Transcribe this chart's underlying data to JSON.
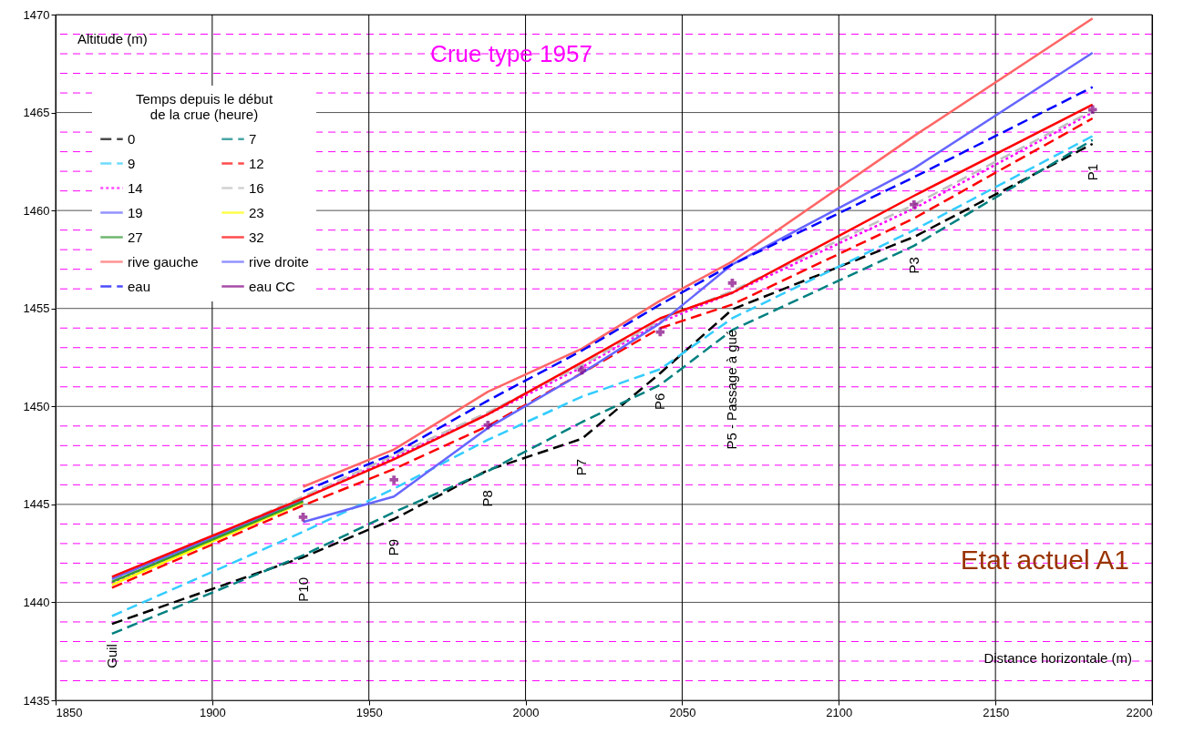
{
  "chart_data": {
    "type": "line",
    "title": "Crue type 1957",
    "xlabel": "Distance horizontale (m)",
    "ylabel": "Altitude (m)",
    "legend_title": "Temps depuis le début de la crue (heure)",
    "x": [
      1868,
      1929,
      1958,
      1988,
      2018,
      2043,
      2066,
      2124,
      2181
    ],
    "series": [
      {
        "name": "0",
        "color": "#000000",
        "line_style": "dashed",
        "values": [
          1438.9,
          1442.3,
          1444.25,
          1446.75,
          1448.35,
          1451.7,
          1454.95,
          1458.65,
          1463.4
        ]
      },
      {
        "name": "7",
        "color": "#008080",
        "line_style": "dashed",
        "values": [
          1438.4,
          1442.4,
          1444.6,
          1446.7,
          1449.2,
          1451.1,
          1453.9,
          1458.2,
          1463.6
        ]
      },
      {
        "name": "9",
        "color": "#33ccff",
        "line_style": "dashed",
        "values": [
          1439.3,
          1443.6,
          1445.8,
          1448.3,
          1450.5,
          1451.9,
          1454.5,
          1459.0,
          1463.8
        ]
      },
      {
        "name": "12",
        "color": "#ff0000",
        "line_style": "dashed",
        "values": [
          1440.75,
          1444.95,
          1446.8,
          1449.0,
          1451.7,
          1454.0,
          1455.2,
          1459.6,
          1464.7
        ]
      },
      {
        "name": "14",
        "color": "#ff00ff",
        "line_style": "dotted",
        "values": [
          1441.0,
          1445.3,
          1447.4,
          1449.6,
          1452.0,
          1454.3,
          1455.8,
          1460.1,
          1465.0
        ]
      },
      {
        "name": "16",
        "color": "#c0c0c0",
        "line_style": "dashed",
        "values": [
          1441.1,
          1445.4,
          1447.5,
          1449.7,
          1452.1,
          1454.4,
          1455.9,
          1460.3,
          1465.1
        ]
      },
      {
        "name": "19",
        "color": "#6666ff",
        "line_style": "solid",
        "values": [
          1441.2,
          1445.2,
          null,
          null,
          null,
          null,
          null,
          null,
          null
        ]
      },
      {
        "name": "23",
        "color": "#ffff00",
        "line_style": "solid",
        "values": [
          1440.9,
          1445.1,
          null,
          null,
          null,
          null,
          null,
          null,
          null
        ]
      },
      {
        "name": "27",
        "color": "#339933",
        "line_style": "solid",
        "values": [
          1441.05,
          1445.15,
          null,
          null,
          null,
          null,
          null,
          null,
          null
        ]
      },
      {
        "name": "32",
        "color": "#ff0000",
        "line_style": "solid",
        "values": [
          1441.3,
          1445.3,
          1447.3,
          1449.6,
          1452.25,
          1454.5,
          1455.8,
          1460.75,
          1465.4
        ]
      },
      {
        "name": "rive gauche",
        "color": "#ff6666",
        "line_style": "solid",
        "x": [
          1929,
          1958,
          1988,
          2018,
          2043,
          2066,
          2124,
          2181
        ],
        "values": [
          1445.9,
          1447.8,
          1450.75,
          1452.95,
          1455.4,
          1457.4,
          1463.8,
          1469.8
        ]
      },
      {
        "name": "rive droite",
        "color": "#6666ff",
        "line_style": "solid",
        "x": [
          1929,
          1958,
          1988,
          2018,
          2043,
          2066,
          2124,
          2181
        ],
        "values": [
          1444.1,
          1445.4,
          1448.9,
          1451.7,
          1454.25,
          1457.25,
          1462.15,
          1468.05
        ]
      },
      {
        "name": "eau",
        "color": "#0000ff",
        "line_style": "dashed",
        "x": [
          1929,
          1958,
          1988,
          2018,
          2043,
          2066,
          2124,
          2181
        ],
        "values": [
          1445.65,
          1447.6,
          1450.3,
          1452.85,
          1455.2,
          1457.25,
          1461.7,
          1466.3
        ]
      },
      {
        "name": "eau CC",
        "type": "scatter",
        "marker": "cross",
        "color": "#800080",
        "x": [
          1929,
          1958,
          1988,
          2018,
          2043,
          2066,
          2124,
          2181
        ],
        "values": [
          1444.35,
          1446.25,
          1449.05,
          1451.85,
          1453.8,
          1456.3,
          1460.3,
          1465.15
        ]
      }
    ],
    "xlim": [
      1850,
      2200
    ],
    "xticks": [
      1850,
      1900,
      1950,
      2000,
      2050,
      2100,
      2150,
      2200
    ],
    "ylim": [
      1435,
      1470
    ],
    "yticks": [
      1435,
      {
        "value": 1436,
        "label": null
      },
      {
        "value": 1437,
        "label": null
      },
      {
        "value": 1438,
        "label": null
      },
      {
        "value": 1439,
        "label": null
      },
      1440,
      {
        "value": 1441,
        "label": null
      },
      {
        "value": 1442,
        "label": null
      },
      {
        "value": 1443,
        "label": null
      },
      {
        "value": 1444,
        "label": null
      },
      1445,
      {
        "value": 1446,
        "label": null
      },
      {
        "value": 1447,
        "label": null
      },
      {
        "value": 1448,
        "label": null
      },
      {
        "value": 1449,
        "label": null
      },
      1450,
      {
        "value": 1451,
        "label": null
      },
      {
        "value": 1452,
        "label": null
      },
      {
        "value": 1453,
        "label": null
      },
      {
        "value": 1454,
        "label": null
      },
      1455,
      {
        "value": 1456,
        "label": null
      },
      {
        "value": 1457,
        "label": null
      },
      {
        "value": 1458,
        "label": null
      },
      {
        "value": 1459,
        "label": null
      },
      1460,
      {
        "value": 1461,
        "label": null
      },
      {
        "value": 1462,
        "label": null
      },
      {
        "value": 1463,
        "label": null
      },
      {
        "value": 1464,
        "label": null
      },
      1465,
      {
        "value": 1466,
        "label": null
      },
      {
        "value": 1467,
        "label": null
      },
      {
        "value": 1468,
        "label": null
      },
      {
        "value": 1469,
        "label": null
      },
      1470
    ],
    "grid": true,
    "legend": "top left",
    "annotations": [
      {
        "text": "P10",
        "x": 1929,
        "y": 1442.3
      },
      {
        "text": "P9",
        "x": 1958,
        "y": 1444.25
      },
      {
        "text": "P8",
        "x": 1988,
        "y": 1446.75
      },
      {
        "text": "P7",
        "x": 2018,
        "y": 1448.35
      },
      {
        "text": "P6",
        "x": 2043,
        "y": 1451.7
      },
      {
        "text": "P5 - Passage à gué",
        "x": 2066,
        "y": 1454.95
      },
      {
        "text": "P3",
        "x": 2124,
        "y": 1458.65
      },
      {
        "text": "P1",
        "x": 2181,
        "y": 1463.4
      },
      {
        "text": "Guil",
        "x": 1868,
        "y": 1438.9
      },
      "Etat actuel A1"
    ]
  }
}
